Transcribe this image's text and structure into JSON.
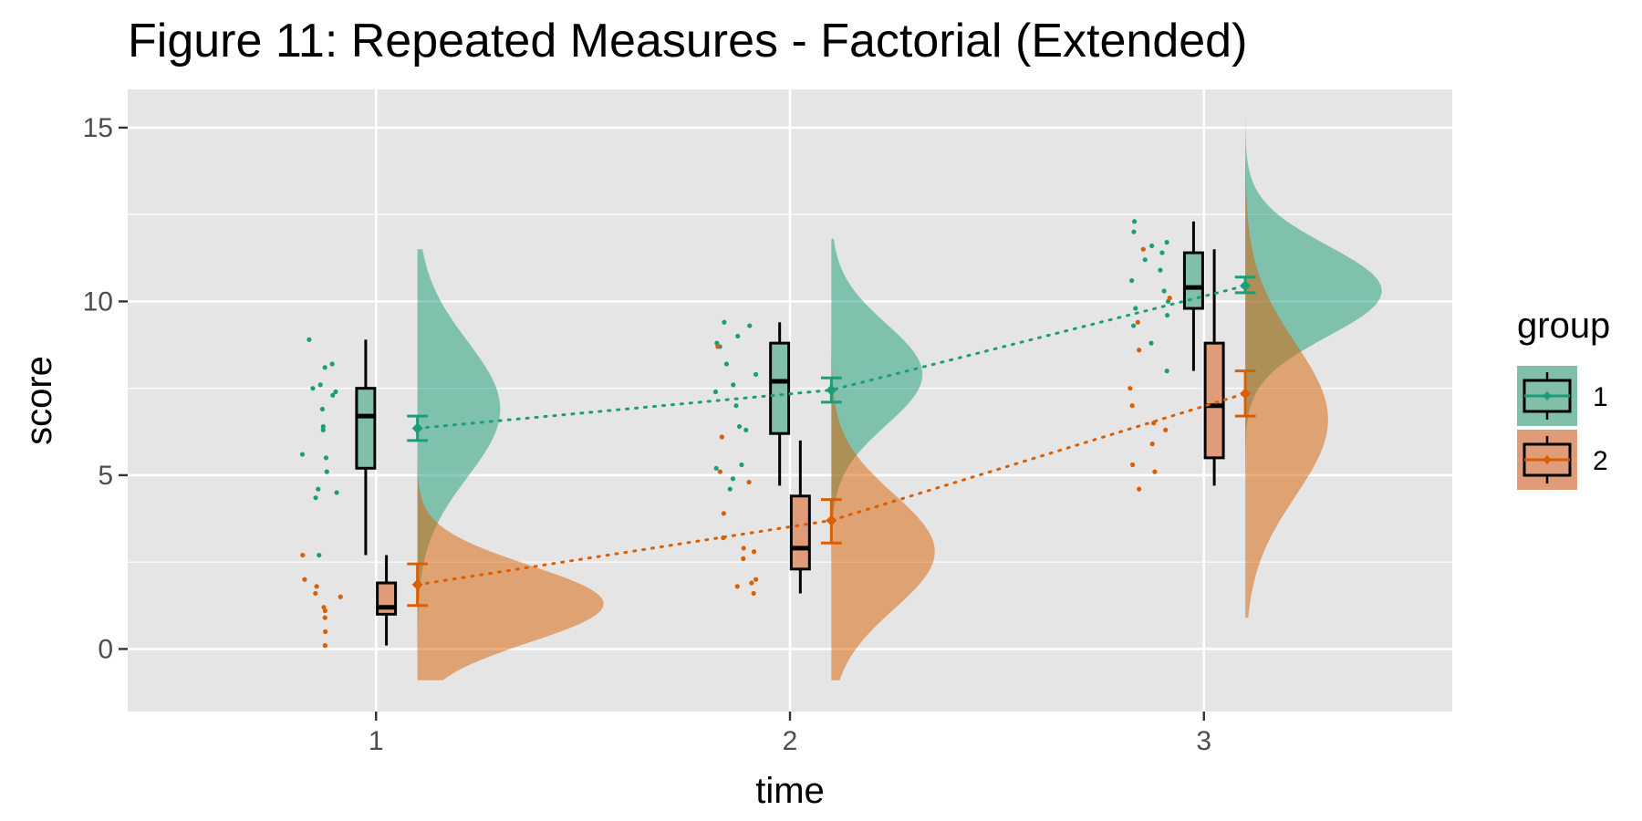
{
  "chart_data": {
    "type": "raincloud",
    "title": "Figure 11: Repeated Measures - Factorial (Extended)",
    "xlabel": "time",
    "ylabel": "score",
    "categories": [
      "1",
      "2",
      "3"
    ],
    "ylim": [
      -1.8,
      16.1
    ],
    "yticks": [
      0,
      5,
      10,
      15
    ],
    "background": "#e5e5e5",
    "gridline_color": "#ffffff",
    "legend": {
      "title": "group",
      "position": "right",
      "entries": [
        "1",
        "2"
      ]
    },
    "series": [
      {
        "name": "1",
        "color": "#1b9e77",
        "fill_color": "#82bfa8",
        "box": [
          {
            "min": 2.7,
            "q1": 5.2,
            "median": 6.7,
            "q3": 7.5,
            "max": 8.9
          },
          {
            "min": 4.7,
            "q1": 6.2,
            "median": 7.7,
            "q3": 8.8,
            "max": 9.4
          },
          {
            "min": 8.0,
            "q1": 9.8,
            "median": 10.4,
            "q3": 11.4,
            "max": 12.3
          }
        ],
        "mean": [
          6.35,
          7.45,
          10.45
        ],
        "ci": [
          [
            6.0,
            6.7
          ],
          [
            7.1,
            7.8
          ],
          [
            10.25,
            10.7
          ]
        ],
        "points": [
          [
            8.9,
            8.2,
            8.1,
            7.6,
            7.5,
            7.4,
            7.3,
            6.9,
            6.4,
            6.3,
            5.6,
            5.5,
            5.1,
            4.6,
            4.5,
            4.35,
            2.7
          ],
          [
            9.4,
            9.3,
            9.0,
            8.8,
            8.7,
            8.2,
            7.9,
            7.6,
            7.4,
            7.0,
            6.4,
            6.3,
            5.3,
            5.2,
            4.9,
            4.6
          ],
          [
            12.3,
            12.0,
            11.7,
            11.6,
            11.4,
            11.2,
            10.9,
            10.6,
            10.3,
            10.0,
            9.8,
            9.6,
            9.3,
            8.8,
            8.0
          ]
        ],
        "density": [
          {
            "min": -0.9,
            "max": 11.5,
            "mu": 6.9,
            "sd": 1.95,
            "peak_width": 0.2
          },
          {
            "min": 2.3,
            "max": 11.8,
            "mu": 7.9,
            "sd": 1.45,
            "peak_width": 0.22
          },
          {
            "min": 0.9,
            "max": 15.3,
            "mu": 10.3,
            "sd": 1.3,
            "peak_width": 0.33
          }
        ]
      },
      {
        "name": "2",
        "color": "#d95f02",
        "fill_color": "#e09b79",
        "box": [
          {
            "min": 0.1,
            "q1": 1.0,
            "median": 1.2,
            "q3": 1.9,
            "max": 2.7
          },
          {
            "min": 1.6,
            "q1": 2.3,
            "median": 2.9,
            "q3": 4.4,
            "max": 6.0
          },
          {
            "min": 4.7,
            "q1": 5.5,
            "median": 7.0,
            "q3": 8.8,
            "max": 11.5
          }
        ],
        "mean": [
          1.85,
          3.7,
          7.35
        ],
        "ci": [
          [
            1.25,
            2.45
          ],
          [
            3.05,
            4.3
          ],
          [
            6.7,
            8.0
          ]
        ],
        "points": [
          [
            2.7,
            2.0,
            1.8,
            1.6,
            1.5,
            1.2,
            1.1,
            0.9,
            0.5,
            0.1
          ],
          [
            8.7,
            6.1,
            5.1,
            4.8,
            3.9,
            3.2,
            2.9,
            2.8,
            2.6,
            2.0,
            1.9,
            1.8,
            1.6
          ],
          [
            11.5,
            10.1,
            9.4,
            8.6,
            7.5,
            7.0,
            6.5,
            6.3,
            5.9,
            5.3,
            5.1,
            4.6
          ]
        ],
        "density": [
          {
            "min": -0.9,
            "max": 8.5,
            "mu": 1.3,
            "sd": 1.1,
            "peak_width": 0.45
          },
          {
            "min": -0.9,
            "max": 11.4,
            "mu": 2.8,
            "sd": 1.65,
            "peak_width": 0.25
          },
          {
            "min": 0.9,
            "max": 14.0,
            "mu": 6.6,
            "sd": 2.2,
            "peak_width": 0.2
          }
        ]
      }
    ]
  }
}
